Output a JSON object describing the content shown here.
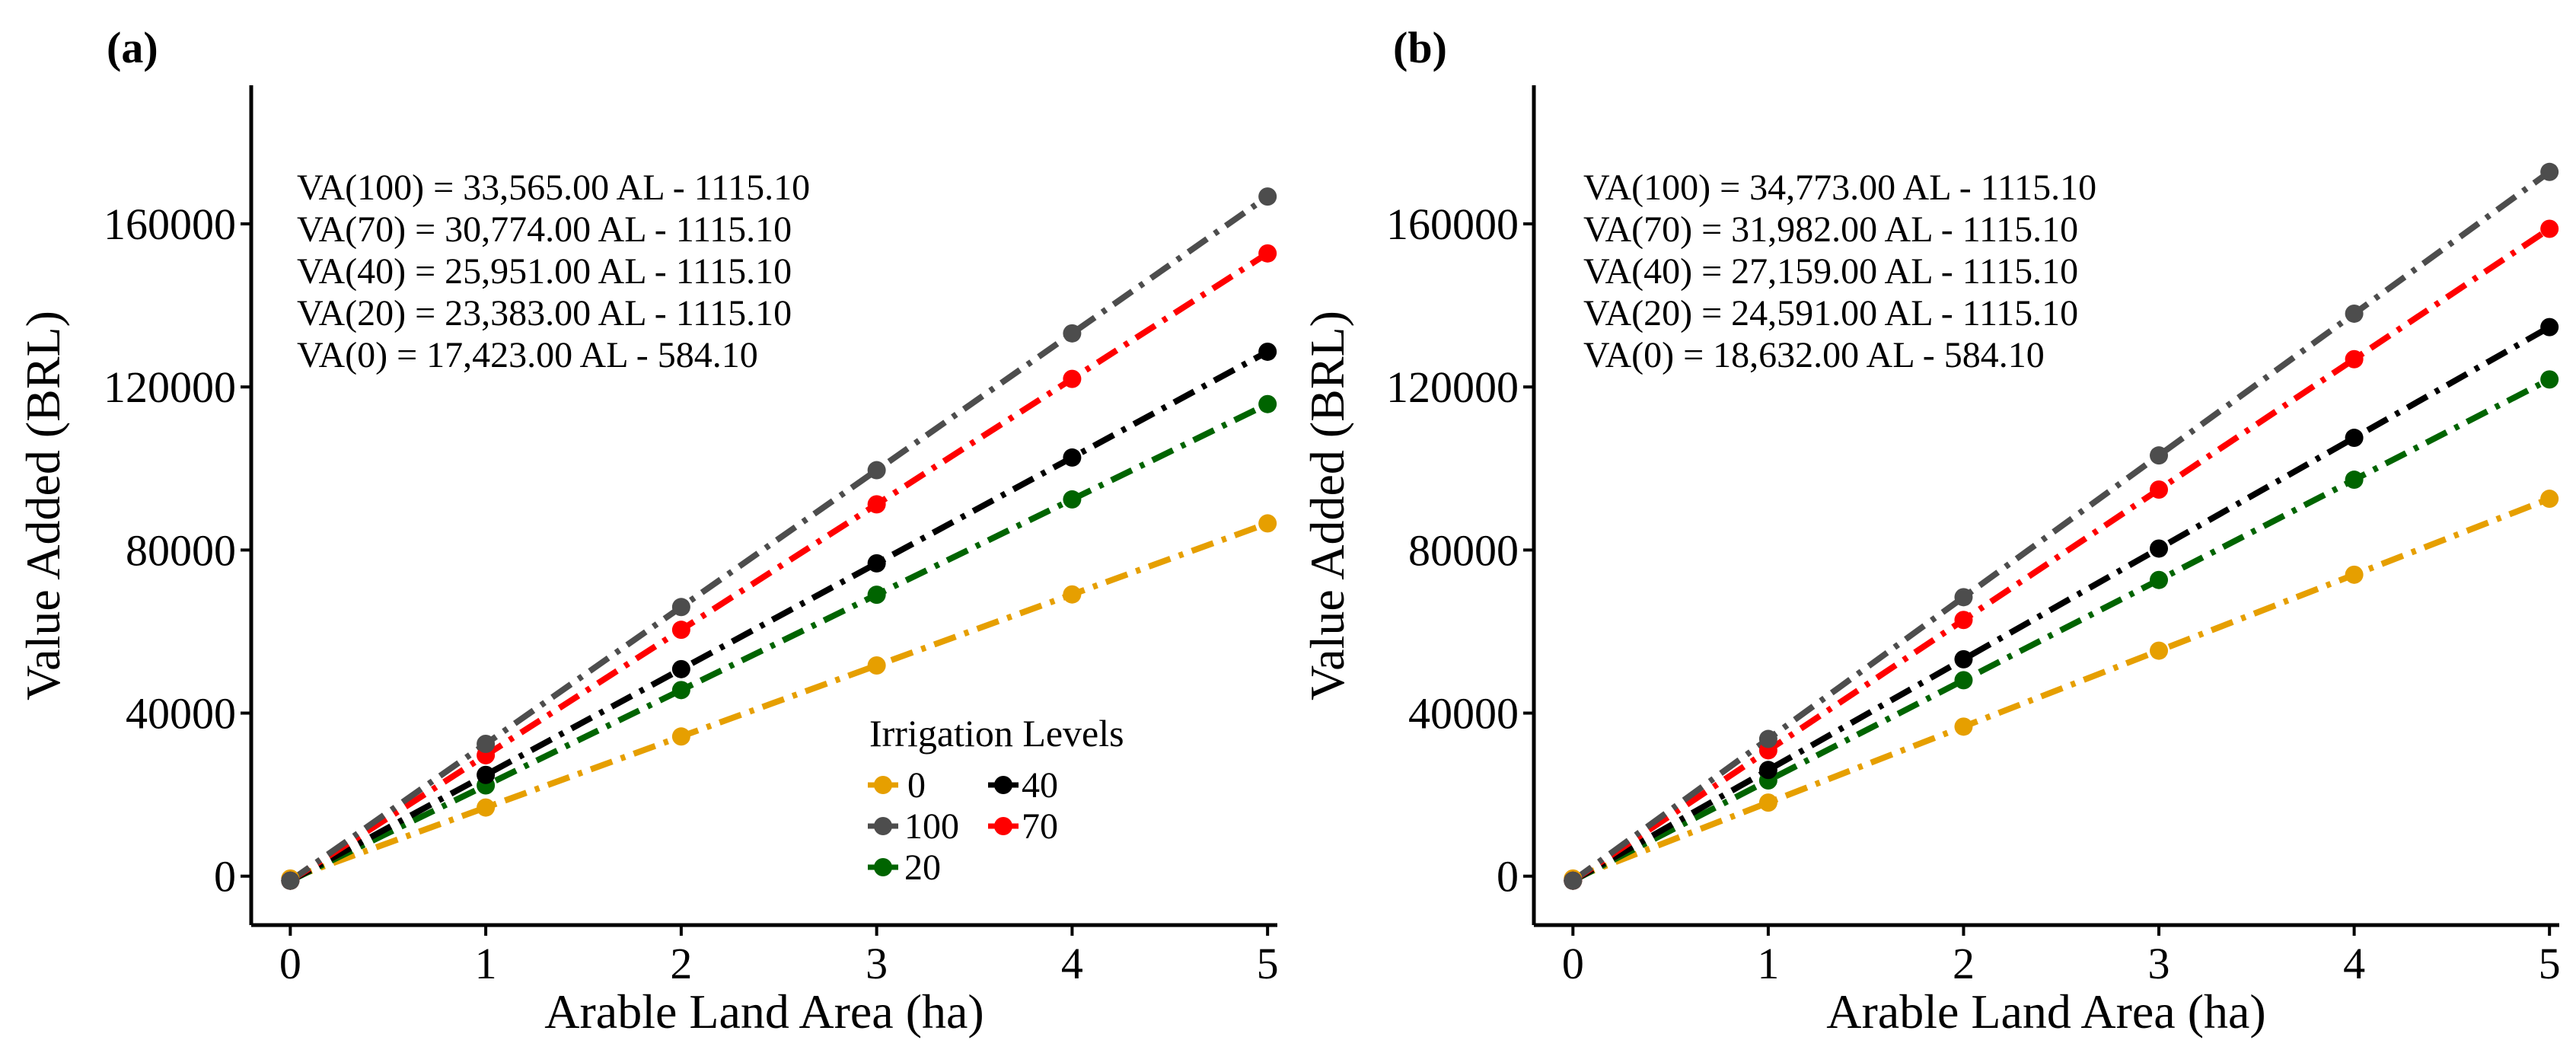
{
  "colors": {
    "0": "#E69F00",
    "20": "#006400",
    "40": "#000000",
    "70": "#FF0000",
    "100": "#4D4D4D",
    "axis": "#000000"
  },
  "legend": {
    "title": "Irrigation Levels",
    "items": [
      {
        "label": "0",
        "color": "#E69F00"
      },
      {
        "label": "40",
        "color": "#000000"
      },
      {
        "label": "100",
        "color": "#4D4D4D"
      },
      {
        "label": "70",
        "color": "#FF0000"
      },
      {
        "label": "20",
        "color": "#006400"
      }
    ]
  },
  "chart_data": [
    {
      "panel": "(a)",
      "type": "line",
      "xlabel": "Arable Land Area (ha)",
      "ylabel": "Value Added (BRL)",
      "x": [
        0,
        1,
        2,
        3,
        4,
        5
      ],
      "xticks": [
        "0",
        "1",
        "2",
        "3",
        "4",
        "5"
      ],
      "yticks": [
        "0",
        "40000",
        "80000",
        "120000",
        "160000"
      ],
      "xlim": [
        -0.2,
        5.05
      ],
      "ylim": [
        -12000,
        194000
      ],
      "equations": [
        "VA(100) = 33,565.00 AL - 1115.10",
        "VA(70) = 30,774.00 AL - 1115.10",
        "VA(40) = 25,951.00 AL - 1115.10",
        "VA(20) = 23,383.00 AL - 1115.10",
        "VA(0) = 17,423.00 AL - 584.10"
      ],
      "series": [
        {
          "name": "0",
          "color": "#E69F00",
          "values": [
            -584.1,
            16838.9,
            34261.9,
            51684.9,
            69107.9,
            86530.9
          ]
        },
        {
          "name": "20",
          "color": "#006400",
          "values": [
            -1115.1,
            22267.9,
            45650.9,
            69033.9,
            92416.9,
            115799.9
          ]
        },
        {
          "name": "40",
          "color": "#000000",
          "values": [
            -1115.1,
            24835.9,
            50786.9,
            76737.9,
            102688.9,
            128639.9
          ]
        },
        {
          "name": "70",
          "color": "#FF0000",
          "values": [
            -1115.1,
            29658.9,
            60432.9,
            91206.9,
            121980.9,
            152754.9
          ]
        },
        {
          "name": "100",
          "color": "#4D4D4D",
          "values": [
            -1115.1,
            32449.9,
            66014.9,
            99579.9,
            133144.9,
            166709.9
          ]
        }
      ]
    },
    {
      "panel": "(b)",
      "type": "line",
      "xlabel": "Arable Land Area (ha)",
      "ylabel": "Value Added (BRL)",
      "x": [
        0,
        1,
        2,
        3,
        4,
        5
      ],
      "xticks": [
        "0",
        "1",
        "2",
        "3",
        "4",
        "5"
      ],
      "yticks": [
        "0",
        "40000",
        "80000",
        "120000",
        "160000"
      ],
      "xlim": [
        -0.2,
        5.05
      ],
      "ylim": [
        -12000,
        194000
      ],
      "equations": [
        "VA(100) = 34,773.00 AL - 1115.10",
        "VA(70) = 31,982.00 AL - 1115.10",
        "VA(40) = 27,159.00 AL - 1115.10",
        "VA(20) = 24,591.00 AL - 1115.10",
        "VA(0) = 18,632.00 AL - 584.10"
      ],
      "series": [
        {
          "name": "0",
          "color": "#E69F00",
          "values": [
            -584.1,
            18047.9,
            36679.9,
            55311.9,
            73943.9,
            92575.9
          ]
        },
        {
          "name": "20",
          "color": "#006400",
          "values": [
            -1115.1,
            23475.9,
            48066.9,
            72657.9,
            97248.9,
            121839.9
          ]
        },
        {
          "name": "40",
          "color": "#000000",
          "values": [
            -1115.1,
            26043.9,
            53202.9,
            80361.9,
            107520.9,
            134679.9
          ]
        },
        {
          "name": "70",
          "color": "#FF0000",
          "values": [
            -1115.1,
            30866.9,
            62848.9,
            94830.9,
            126812.9,
            158794.9
          ]
        },
        {
          "name": "100",
          "color": "#4D4D4D",
          "values": [
            -1115.1,
            33657.9,
            68430.9,
            103203.9,
            137976.9,
            172749.9
          ]
        }
      ]
    }
  ]
}
